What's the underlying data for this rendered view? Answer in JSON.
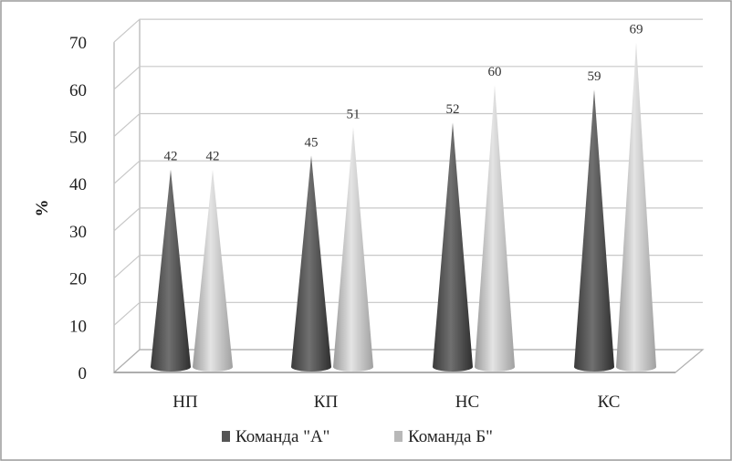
{
  "chart_data": {
    "type": "bar",
    "style": "3d-cone",
    "categories": [
      "НП",
      "КП",
      "НС",
      "КС"
    ],
    "series": [
      {
        "name": "Команда \"А\"",
        "values": [
          42,
          45,
          52,
          59
        ],
        "color": "#555555"
      },
      {
        "name": "Команда Б\"",
        "values": [
          42,
          51,
          60,
          69
        ],
        "color": "#b8b8b8"
      }
    ],
    "data_labels": [
      [
        "42",
        "45",
        "52",
        "59"
      ],
      [
        "42",
        "51",
        "60",
        "69"
      ]
    ],
    "ylabel": "%",
    "ylim": [
      0,
      70
    ],
    "yticks": [
      "0",
      "10",
      "20",
      "30",
      "40",
      "50",
      "60",
      "70"
    ],
    "grid": true,
    "legend": "bottom"
  }
}
